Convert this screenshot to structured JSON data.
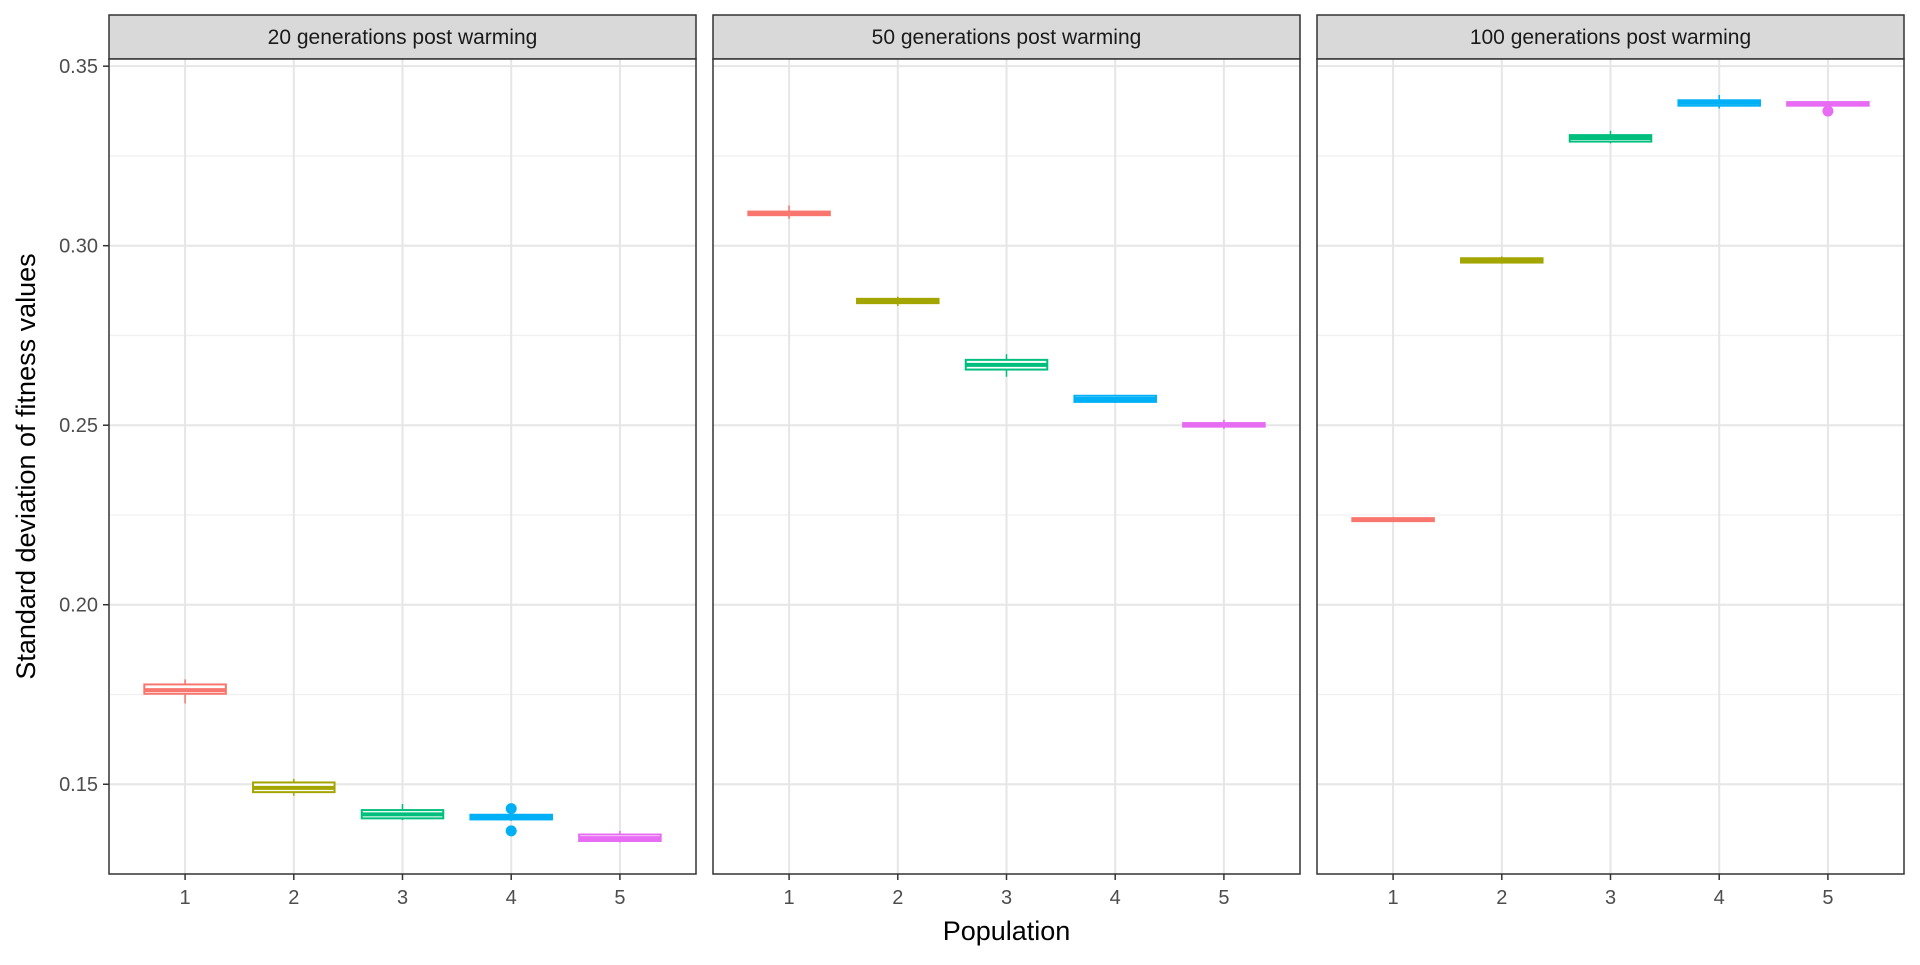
{
  "chart_data": {
    "type": "boxplot",
    "xlabel": "Population",
    "ylabel": "Standard deviation of fitness values",
    "ylim": [
      0.125,
      0.352
    ],
    "y_ticks": [
      0.15,
      0.2,
      0.25,
      0.3,
      0.35
    ],
    "y_tick_labels": [
      "0.15",
      "0.20",
      "0.25",
      "0.30",
      "0.35"
    ],
    "categories": [
      "1",
      "2",
      "3",
      "4",
      "5"
    ],
    "colors": [
      "#F8766D",
      "#A3A500",
      "#00BF7D",
      "#00B0F6",
      "#E76BF3"
    ],
    "grid": true,
    "legend": "none",
    "panels": [
      {
        "title": "20 generations post warming",
        "boxes": [
          {
            "x": "1",
            "min": 0.1725,
            "q1": 0.1752,
            "median": 0.1762,
            "q3": 0.1778,
            "max": 0.1792,
            "outliers": []
          },
          {
            "x": "2",
            "min": 0.1468,
            "q1": 0.1478,
            "median": 0.149,
            "q3": 0.1505,
            "max": 0.1515,
            "outliers": []
          },
          {
            "x": "3",
            "min": 0.14,
            "q1": 0.1405,
            "median": 0.1416,
            "q3": 0.1428,
            "max": 0.1445,
            "outliers": []
          },
          {
            "x": "4",
            "min": 0.1398,
            "q1": 0.1402,
            "median": 0.1408,
            "q3": 0.1415,
            "max": 0.142,
            "outliers": [
              0.137,
              0.1432
            ]
          },
          {
            "x": "5",
            "min": 0.1338,
            "q1": 0.1342,
            "median": 0.135,
            "q3": 0.136,
            "max": 0.137,
            "outliers": []
          }
        ]
      },
      {
        "title": "50 generations post warming",
        "boxes": [
          {
            "x": "1",
            "min": 0.3075,
            "q1": 0.3085,
            "median": 0.3091,
            "q3": 0.3095,
            "max": 0.3112,
            "outliers": []
          },
          {
            "x": "2",
            "min": 0.2832,
            "q1": 0.284,
            "median": 0.2845,
            "q3": 0.2852,
            "max": 0.2858,
            "outliers": []
          },
          {
            "x": "3",
            "min": 0.2635,
            "q1": 0.2655,
            "median": 0.2668,
            "q3": 0.2682,
            "max": 0.2698,
            "outliers": []
          },
          {
            "x": "4",
            "min": 0.2562,
            "q1": 0.2565,
            "median": 0.2573,
            "q3": 0.2582,
            "max": 0.2585,
            "outliers": []
          },
          {
            "x": "5",
            "min": 0.249,
            "q1": 0.2496,
            "median": 0.2501,
            "q3": 0.2506,
            "max": 0.2515,
            "outliers": []
          }
        ]
      },
      {
        "title": "100 generations post warming",
        "boxes": [
          {
            "x": "1",
            "min": 0.2232,
            "q1": 0.2234,
            "median": 0.2237,
            "q3": 0.224,
            "max": 0.2243,
            "outliers": []
          },
          {
            "x": "2",
            "min": 0.295,
            "q1": 0.2953,
            "median": 0.2958,
            "q3": 0.2965,
            "max": 0.297,
            "outliers": []
          },
          {
            "x": "3",
            "min": 0.3285,
            "q1": 0.329,
            "median": 0.33,
            "q3": 0.3308,
            "max": 0.332,
            "outliers": []
          },
          {
            "x": "4",
            "min": 0.3382,
            "q1": 0.339,
            "median": 0.3398,
            "q3": 0.3405,
            "max": 0.342,
            "outliers": []
          },
          {
            "x": "5",
            "min": 0.3388,
            "q1": 0.339,
            "median": 0.3395,
            "q3": 0.34,
            "max": 0.3402,
            "outliers": [
              0.3375
            ]
          }
        ]
      }
    ]
  }
}
